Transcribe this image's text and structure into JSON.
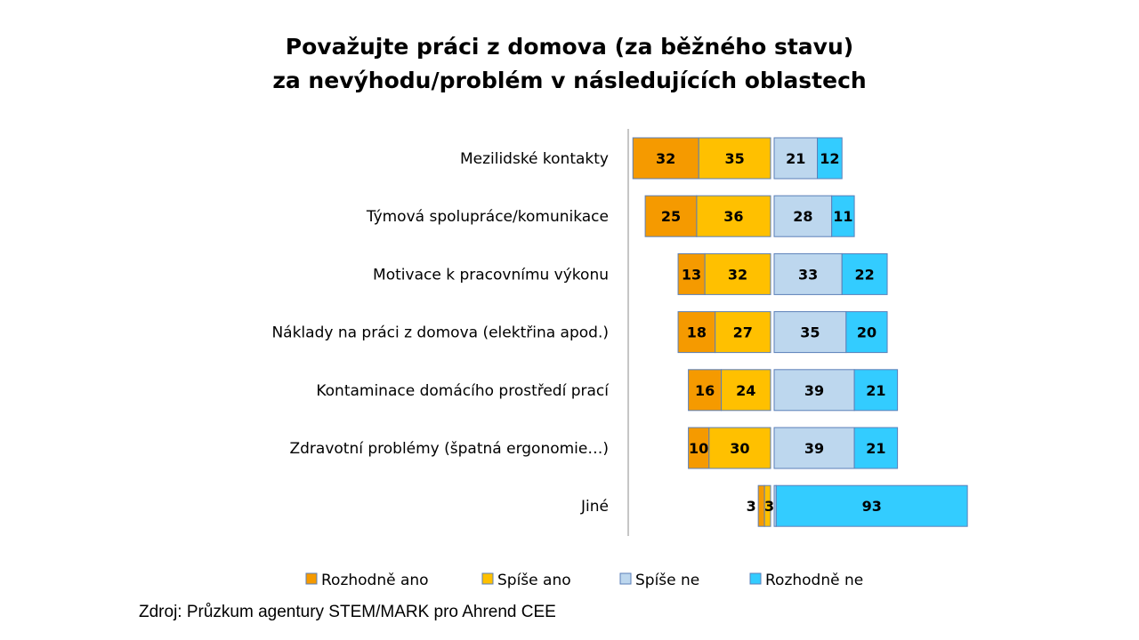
{
  "chart_data": {
    "type": "bar",
    "orientation": "horizontal-diverging-stacked",
    "title_lines": [
      "Považujte práci z domova (za běžného stavu)",
      "za nevýhodu/problém v následujících oblastech"
    ],
    "categories": [
      "Mezilidské kontakty",
      "Týmová spolupráce/komunikace",
      "Motivace k pracovnímu výkonu",
      "Náklady na práci z domova (elektřina apod.)",
      "Kontaminace domácího prostředí prací",
      "Zdravotní problémy (špatná ergonomie…)",
      "Jiné"
    ],
    "series": [
      {
        "name": "Rozhodně ano",
        "side": "left",
        "color": "#F59A00",
        "values": [
          32,
          25,
          13,
          18,
          16,
          10,
          3
        ]
      },
      {
        "name": "Spíše ano",
        "side": "left",
        "color": "#FFC000",
        "values": [
          35,
          36,
          32,
          27,
          24,
          30,
          3
        ]
      },
      {
        "name": "Spíše ne",
        "side": "right",
        "color": "#BDD7EE",
        "values": [
          21,
          28,
          33,
          35,
          39,
          39,
          1
        ]
      },
      {
        "name": "Rozhodně ne",
        "side": "right",
        "color": "#33CCFF",
        "values": [
          12,
          11,
          22,
          20,
          21,
          21,
          93
        ]
      }
    ],
    "legend_position": "bottom",
    "grid": false
  },
  "source": "Zdroj: Průzkum agentury STEM/MARK pro Ahrend CEE"
}
